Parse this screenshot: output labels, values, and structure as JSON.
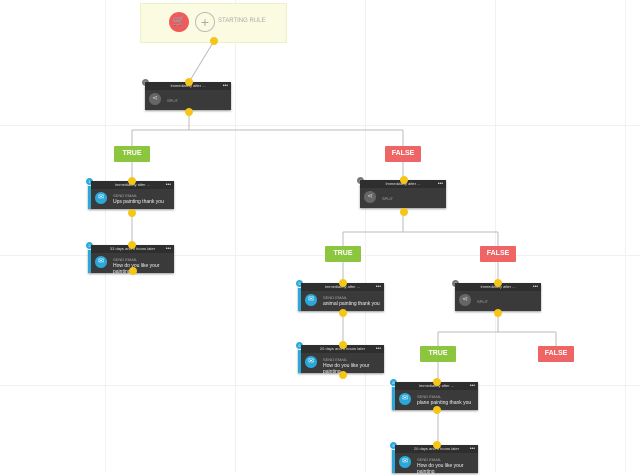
{
  "start": {
    "label": "STARTING RULE",
    "icon": "shopping-cart-icon"
  },
  "nodes": [
    {
      "type": "split",
      "badge": "3",
      "header": "Immediately after ...",
      "title": "SPLIT",
      "text": ""
    },
    {
      "type": "email",
      "badge": "1",
      "header": "Immediately after ...",
      "title": "SEND EMAIL",
      "text": "Ups painting thank you"
    },
    {
      "type": "email",
      "badge": "2",
      "header": "33 days and 0 hours later",
      "title": "SEND EMAIL",
      "text": "How do you like your painting"
    },
    {
      "type": "split",
      "badge": "4",
      "header": "Immediately after ...",
      "title": "SPLIT",
      "text": ""
    },
    {
      "type": "email",
      "badge": "5",
      "header": "Immediately after ...",
      "title": "SEND EMAIL",
      "text": "animal painting thank you"
    },
    {
      "type": "email",
      "badge": "6",
      "header": "20 days and 0 hours later",
      "title": "SEND EMAIL",
      "text": "How do you like your painting"
    },
    {
      "type": "split",
      "badge": "7",
      "header": "Immediately after ...",
      "title": "SPLIT",
      "text": ""
    },
    {
      "type": "email",
      "badge": "8",
      "header": "Immediately after ...",
      "title": "SEND EMAIL",
      "text": "plane painting thank you"
    },
    {
      "type": "email",
      "badge": "9",
      "header": "20 days and 0 hours later",
      "title": "SEND EMAIL",
      "text": "How do you like your painting"
    }
  ],
  "branches": [
    {
      "kind": "true",
      "label": "TRUE"
    },
    {
      "kind": "false",
      "label": "FALSE"
    },
    {
      "kind": "true",
      "label": "TRUE"
    },
    {
      "kind": "false",
      "label": "FALSE"
    },
    {
      "kind": "true",
      "label": "TRUE"
    },
    {
      "kind": "false",
      "label": "FALSE"
    }
  ],
  "colors": {
    "true": "#8cc63f",
    "false": "#ef6464",
    "email": "#29a8d9",
    "connector": "#f5c518"
  }
}
